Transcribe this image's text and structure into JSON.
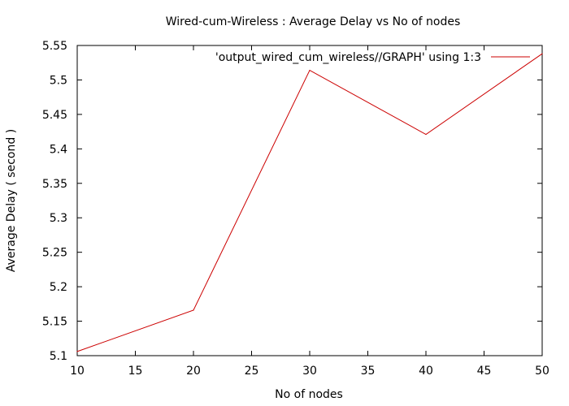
{
  "chart_data": {
    "type": "line",
    "title": "Wired-cum-Wireless : Average Delay vs No of nodes",
    "xlabel": "No of nodes",
    "ylabel": "Average Delay ( second )",
    "xlim": [
      10,
      50
    ],
    "ylim": [
      5.1,
      5.55
    ],
    "x_ticks": [
      "10",
      "15",
      "20",
      "25",
      "30",
      "35",
      "40",
      "45",
      "50"
    ],
    "y_ticks": [
      "5.1",
      "5.15",
      "5.2",
      "5.25",
      "5.3",
      "5.35",
      "5.4",
      "5.45",
      "5.5",
      "5.55"
    ],
    "grid": false,
    "legend_position": "top-right",
    "series": [
      {
        "name": "'output_wired_cum_wireless//GRAPH' using 1:3",
        "color": "#cc0000",
        "x": [
          10,
          20,
          30,
          40,
          50
        ],
        "y": [
          5.106,
          5.166,
          5.514,
          5.421,
          5.538
        ]
      }
    ]
  }
}
